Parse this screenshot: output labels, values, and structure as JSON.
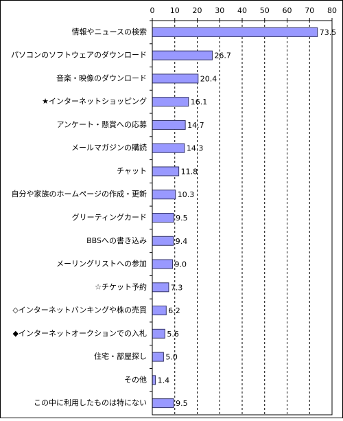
{
  "chart_data": {
    "type": "bar",
    "orientation": "horizontal",
    "categories": [
      "情報やニュースの検索",
      "パソコンのソフトウェアのダウンロード",
      "音楽・映像のダウンロード",
      "★インターネットショッピング",
      "アンケート・懸賞への応募",
      "メールマガジンの購読",
      "チャット",
      "自分や家族のホームページの作成・更新",
      "グリーティングカード",
      "BBSへの書き込み",
      "メーリングリストへの参加",
      "☆チケット予約",
      "◇インターネットバンキングや株の売買",
      "◆インターネットオークションでの入札",
      "住宅・部屋探し",
      "その他",
      "この中に利用したものは特にない"
    ],
    "values": [
      73.5,
      26.7,
      20.4,
      16.1,
      14.7,
      14.3,
      11.8,
      10.3,
      9.5,
      9.4,
      9.0,
      7.3,
      6.2,
      5.6,
      5.0,
      1.4,
      9.5
    ],
    "value_labels": [
      "73.5",
      "26.7",
      "20.4",
      "16.1",
      "14.7",
      "14.3",
      "11.8",
      "10.3",
      "9.5",
      "9.4",
      "9.0",
      "7.3",
      "6.2",
      "5.6",
      "5.0",
      "1.4",
      "9.5"
    ],
    "color": "#9999ff",
    "xlim": [
      0,
      80
    ],
    "xticks": [
      0,
      10,
      20,
      30,
      40,
      50,
      60,
      70,
      80
    ],
    "grid": true
  }
}
